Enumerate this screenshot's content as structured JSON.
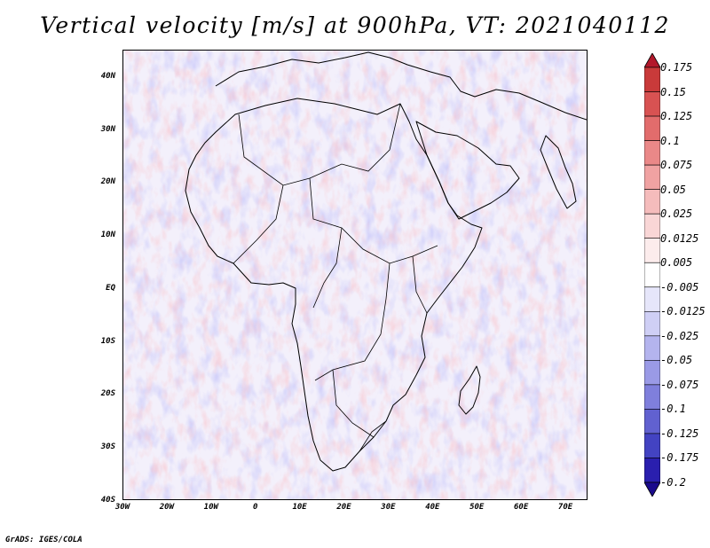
{
  "title": "Vertical velocity [m/s] at 900hPa, VT: 2021040112",
  "credit": "GrADS: IGES/COLA",
  "map": {
    "lat_labels": [
      "40N",
      "30N",
      "20N",
      "10N",
      "EQ",
      "10S",
      "20S",
      "30S",
      "40S"
    ],
    "lat_values": [
      40,
      30,
      20,
      10,
      0,
      -10,
      -20,
      -30,
      -40
    ],
    "lon_labels": [
      "30W",
      "20W",
      "10W",
      "0",
      "10E",
      "20E",
      "30E",
      "40E",
      "50E",
      "60E",
      "70E"
    ],
    "lon_values": [
      -30,
      -20,
      -10,
      0,
      10,
      20,
      30,
      40,
      50,
      60,
      70
    ],
    "lon_range": [
      -30,
      75
    ],
    "lat_range": [
      -40,
      45
    ]
  },
  "colorbar": {
    "levels": [
      "0.175",
      "0.15",
      "0.125",
      "0.1",
      "0.075",
      "0.05",
      "0.025",
      "0.0125",
      "0.005",
      "-0.005",
      "-0.0125",
      "-0.025",
      "-0.05",
      "-0.075",
      "-0.1",
      "-0.125",
      "-0.175",
      "-0.2"
    ],
    "colors": [
      "#b2182b",
      "#c93a3a",
      "#d85252",
      "#e26c6c",
      "#ea8888",
      "#f0a2a2",
      "#f5bcbc",
      "#f9d6d6",
      "#fcecec",
      "#ffffff",
      "#e6e6fa",
      "#cfcff5",
      "#b4b4ee",
      "#9a9ae6",
      "#7f7fdc",
      "#6161d0",
      "#4343c2",
      "#2a1fae",
      "#1a0a8c"
    ]
  }
}
